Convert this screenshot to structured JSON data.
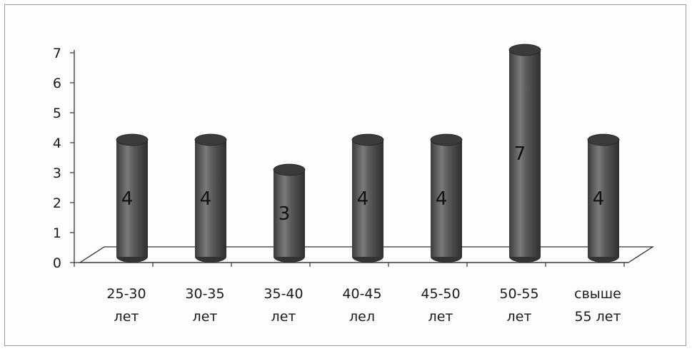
{
  "chart_data": {
    "type": "bar",
    "style": "3d-cylinder",
    "categories": [
      [
        "25-30",
        "лет"
      ],
      [
        "30-35",
        "лет"
      ],
      [
        "35-40",
        "лет"
      ],
      [
        "40-45",
        "лел"
      ],
      [
        "45-50",
        "лет"
      ],
      [
        "50-55",
        "лет"
      ],
      [
        "свыше",
        "55 лет"
      ]
    ],
    "values": [
      4,
      4,
      3,
      4,
      4,
      7,
      4
    ],
    "data_labels": [
      "4",
      "4",
      "3",
      "4",
      "4",
      "7",
      "4"
    ],
    "y_ticks": [
      "0",
      "1",
      "2",
      "3",
      "4",
      "5",
      "6",
      "7"
    ],
    "ylim": [
      0,
      7
    ],
    "grid": false,
    "legend": "none",
    "title": "",
    "xlabel": "",
    "ylabel": "",
    "colors": {
      "bar_fill": "#555555",
      "bar_highlight": "#8a8a8a",
      "bar_top": "#3a3a3a",
      "axis": "#333333"
    }
  }
}
